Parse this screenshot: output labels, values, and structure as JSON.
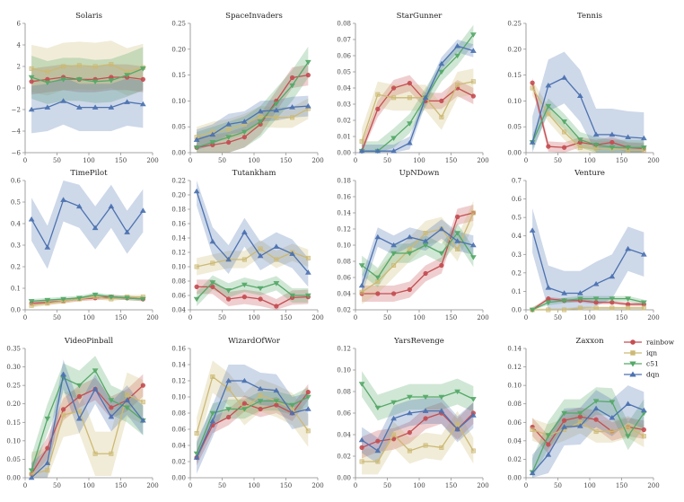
{
  "chart_data": {
    "type": "line",
    "description_colors": {
      "rainbow": "#c44e52",
      "iqn": "#ccb974",
      "c51": "#55a868",
      "dqn": "#4c72b0"
    },
    "legend": [
      "rainbow",
      "iqn",
      "c51",
      "dqn"
    ],
    "x": [
      10,
      35,
      60,
      85,
      110,
      135,
      160,
      185
    ],
    "x_ticks": [
      0,
      50,
      100,
      150,
      200
    ],
    "panels": [
      {
        "title": "Solaris",
        "ylim": [
          -6,
          6
        ],
        "yticks": [
          -6,
          -4,
          -2,
          0,
          2,
          4,
          6
        ],
        "series": [
          {
            "name": "rainbow",
            "values": [
              0.6,
              0.8,
              1.0,
              0.8,
              0.8,
              1.0,
              1.0,
              0.8
            ],
            "band": 1.2
          },
          {
            "name": "iqn",
            "values": [
              1.8,
              1.5,
              2.0,
              2.1,
              2.0,
              2.2,
              1.5,
              1.9
            ],
            "band": 2.2
          },
          {
            "name": "c51",
            "values": [
              1.0,
              0.5,
              0.8,
              0.8,
              0.6,
              0.7,
              1.2,
              1.8
            ],
            "band": 2.0
          },
          {
            "name": "dqn",
            "values": [
              -2.0,
              -1.8,
              -1.2,
              -1.8,
              -1.8,
              -1.8,
              -1.3,
              -1.5
            ],
            "band": 2.2
          }
        ]
      },
      {
        "title": "SpaceInvaders",
        "ylim": [
          0,
          0.25
        ],
        "yticks": [
          0.0,
          0.05,
          0.1,
          0.15,
          0.2,
          0.25
        ],
        "series": [
          {
            "name": "rainbow",
            "values": [
              0.01,
              0.015,
              0.02,
              0.03,
              0.055,
              0.1,
              0.145,
              0.15
            ],
            "band": 0.02
          },
          {
            "name": "iqn",
            "values": [
              0.03,
              0.04,
              0.045,
              0.055,
              0.07,
              0.068,
              0.068,
              0.085
            ],
            "band": 0.02
          },
          {
            "name": "c51",
            "values": [
              0.01,
              0.02,
              0.03,
              0.04,
              0.06,
              0.095,
              0.13,
              0.175
            ],
            "band": 0.03
          },
          {
            "name": "dqn",
            "values": [
              0.025,
              0.035,
              0.055,
              0.06,
              0.08,
              0.082,
              0.088,
              0.09
            ],
            "band": 0.02
          }
        ]
      },
      {
        "title": "StarGunner",
        "ylim": [
          0,
          0.08
        ],
        "yticks": [
          0.0,
          0.01,
          0.02,
          0.03,
          0.04,
          0.05,
          0.06,
          0.07,
          0.08
        ],
        "series": [
          {
            "name": "rainbow",
            "values": [
              0.001,
              0.027,
              0.04,
              0.043,
              0.032,
              0.032,
              0.04,
              0.035
            ],
            "band": 0.005
          },
          {
            "name": "iqn",
            "values": [
              0.007,
              0.036,
              0.034,
              0.034,
              0.034,
              0.022,
              0.042,
              0.044
            ],
            "band": 0.008
          },
          {
            "name": "c51",
            "values": [
              0.001,
              0.001,
              0.009,
              0.018,
              0.034,
              0.05,
              0.06,
              0.073
            ],
            "band": 0.006
          },
          {
            "name": "dqn",
            "values": [
              0.001,
              0.001,
              0.001,
              0.006,
              0.034,
              0.055,
              0.066,
              0.063
            ],
            "band": 0.004
          }
        ]
      },
      {
        "title": "Tennis",
        "ylim": [
          0,
          0.25
        ],
        "yticks": [
          0.0,
          0.05,
          0.1,
          0.15,
          0.2,
          0.25
        ],
        "series": [
          {
            "name": "rainbow",
            "values": [
              0.135,
              0.012,
              0.01,
              0.02,
              0.015,
              0.02,
              0.01,
              0.008
            ],
            "band": 0.01
          },
          {
            "name": "iqn",
            "values": [
              0.125,
              0.075,
              0.04,
              0.01,
              0.008,
              0.008,
              0.005,
              0.005
            ],
            "band": 0.015
          },
          {
            "name": "c51",
            "values": [
              0.02,
              0.09,
              0.06,
              0.025,
              0.015,
              0.01,
              0.01,
              0.01
            ],
            "band": 0.015
          },
          {
            "name": "dqn",
            "values": [
              0.02,
              0.13,
              0.145,
              0.11,
              0.035,
              0.035,
              0.03,
              0.028
            ],
            "band": 0.05
          }
        ]
      },
      {
        "title": "TimePilot",
        "ylim": [
          0,
          0.6
        ],
        "yticks": [
          0.0,
          0.1,
          0.2,
          0.3,
          0.4,
          0.5,
          0.6
        ],
        "series": [
          {
            "name": "rainbow",
            "values": [
              0.03,
              0.035,
              0.04,
              0.05,
              0.055,
              0.06,
              0.055,
              0.05
            ],
            "band": 0.01
          },
          {
            "name": "iqn",
            "values": [
              0.02,
              0.03,
              0.04,
              0.05,
              0.06,
              0.05,
              0.06,
              0.06
            ],
            "band": 0.01
          },
          {
            "name": "c51",
            "values": [
              0.04,
              0.045,
              0.05,
              0.055,
              0.07,
              0.06,
              0.055,
              0.05
            ],
            "band": 0.01
          },
          {
            "name": "dqn",
            "values": [
              0.42,
              0.29,
              0.51,
              0.48,
              0.38,
              0.48,
              0.36,
              0.46
            ],
            "band": 0.1
          }
        ]
      },
      {
        "title": "Tutankham",
        "ylim": [
          0.04,
          0.22
        ],
        "yticks": [
          0.04,
          0.06,
          0.08,
          0.1,
          0.12,
          0.14,
          0.16,
          0.18,
          0.2,
          0.22
        ],
        "series": [
          {
            "name": "rainbow",
            "values": [
              0.072,
              0.072,
              0.055,
              0.058,
              0.055,
              0.045,
              0.057,
              0.058
            ],
            "band": 0.01
          },
          {
            "name": "iqn",
            "values": [
              0.1,
              0.105,
              0.11,
              0.11,
              0.125,
              0.11,
              0.12,
              0.112
            ],
            "band": 0.012
          },
          {
            "name": "c51",
            "values": [
              0.055,
              0.078,
              0.067,
              0.075,
              0.07,
              0.077,
              0.06,
              0.06
            ],
            "band": 0.01
          },
          {
            "name": "dqn",
            "values": [
              0.205,
              0.135,
              0.11,
              0.148,
              0.115,
              0.128,
              0.118,
              0.092
            ],
            "band": 0.02
          }
        ]
      },
      {
        "title": "UpNDown",
        "ylim": [
          0.02,
          0.18
        ],
        "yticks": [
          0.02,
          0.04,
          0.06,
          0.08,
          0.1,
          0.12,
          0.14,
          0.16,
          0.18
        ],
        "series": [
          {
            "name": "rainbow",
            "values": [
              0.04,
              0.04,
              0.04,
              0.045,
              0.065,
              0.075,
              0.135,
              0.14
            ],
            "band": 0.01
          },
          {
            "name": "iqn",
            "values": [
              0.042,
              0.055,
              0.075,
              0.095,
              0.115,
              0.12,
              0.095,
              0.14
            ],
            "band": 0.015
          },
          {
            "name": "c51",
            "values": [
              0.075,
              0.06,
              0.09,
              0.09,
              0.1,
              0.09,
              0.115,
              0.085
            ],
            "band": 0.012
          },
          {
            "name": "dqn",
            "values": [
              0.05,
              0.11,
              0.1,
              0.11,
              0.105,
              0.12,
              0.105,
              0.1
            ],
            "band": 0.012
          }
        ]
      },
      {
        "title": "Venture",
        "ylim": [
          0,
          0.7
        ],
        "yticks": [
          0.0,
          0.1,
          0.2,
          0.3,
          0.4,
          0.5,
          0.6,
          0.7
        ],
        "series": [
          {
            "name": "rainbow",
            "values": [
              0.0,
              0.06,
              0.05,
              0.05,
              0.04,
              0.04,
              0.03,
              0.03
            ],
            "band": 0.01
          },
          {
            "name": "iqn",
            "values": [
              0.0,
              0.0,
              0.0,
              0.01,
              0.01,
              0.01,
              0.01,
              0.01
            ],
            "band": 0.008
          },
          {
            "name": "c51",
            "values": [
              0.0,
              0.04,
              0.05,
              0.06,
              0.06,
              0.06,
              0.06,
              0.04
            ],
            "band": 0.015
          },
          {
            "name": "dqn",
            "values": [
              0.43,
              0.12,
              0.09,
              0.09,
              0.14,
              0.18,
              0.33,
              0.3
            ],
            "band": 0.12
          }
        ]
      },
      {
        "title": "VideoPinball",
        "ylim": [
          0,
          0.35
        ],
        "yticks": [
          0.0,
          0.05,
          0.1,
          0.15,
          0.2,
          0.25,
          0.3,
          0.35
        ],
        "series": [
          {
            "name": "rainbow",
            "values": [
              0.01,
              0.08,
              0.185,
              0.22,
              0.24,
              0.19,
              0.21,
              0.25
            ],
            "band": 0.03
          },
          {
            "name": "iqn",
            "values": [
              0.01,
              0.02,
              0.17,
              0.18,
              0.065,
              0.065,
              0.225,
              0.205
            ],
            "band": 0.06
          },
          {
            "name": "c51",
            "values": [
              0.02,
              0.16,
              0.27,
              0.25,
              0.29,
              0.21,
              0.19,
              0.155
            ],
            "band": 0.04
          },
          {
            "name": "dqn",
            "values": [
              0.0,
              0.04,
              0.28,
              0.16,
              0.24,
              0.165,
              0.21,
              0.155
            ],
            "band": 0.04
          }
        ]
      },
      {
        "title": "WizardOfWor",
        "ylim": [
          0,
          0.16
        ],
        "yticks": [
          0.0,
          0.02,
          0.04,
          0.06,
          0.08,
          0.1,
          0.12,
          0.14,
          0.16
        ],
        "series": [
          {
            "name": "rainbow",
            "values": [
              0.025,
              0.065,
              0.075,
              0.092,
              0.085,
              0.09,
              0.08,
              0.106
            ],
            "band": 0.01
          },
          {
            "name": "iqn",
            "values": [
              0.055,
              0.125,
              0.11,
              0.085,
              0.102,
              0.095,
              0.085,
              0.058
            ],
            "band": 0.02
          },
          {
            "name": "c51",
            "values": [
              0.03,
              0.08,
              0.085,
              0.085,
              0.095,
              0.095,
              0.09,
              0.1
            ],
            "band": 0.012
          },
          {
            "name": "dqn",
            "values": [
              0.025,
              0.07,
              0.12,
              0.12,
              0.11,
              0.108,
              0.08,
              0.085
            ],
            "band": 0.02
          }
        ]
      },
      {
        "title": "YarsRevenge",
        "ylim": [
          0,
          0.12
        ],
        "yticks": [
          0.0,
          0.02,
          0.04,
          0.06,
          0.08,
          0.1,
          0.12
        ],
        "series": [
          {
            "name": "rainbow",
            "values": [
              0.028,
              0.034,
              0.036,
              0.042,
              0.055,
              0.06,
              0.045,
              0.06
            ],
            "band": 0.01
          },
          {
            "name": "iqn",
            "values": [
              0.015,
              0.015,
              0.04,
              0.025,
              0.03,
              0.028,
              0.05,
              0.025
            ],
            "band": 0.012
          },
          {
            "name": "c51",
            "values": [
              0.087,
              0.065,
              0.07,
              0.075,
              0.075,
              0.075,
              0.08,
              0.073
            ],
            "band": 0.012
          },
          {
            "name": "dqn",
            "values": [
              0.035,
              0.025,
              0.055,
              0.06,
              0.062,
              0.062,
              0.045,
              0.058
            ],
            "band": 0.012
          }
        ]
      },
      {
        "title": "Zaxxon",
        "ylim": [
          0,
          0.14
        ],
        "yticks": [
          0.0,
          0.02,
          0.04,
          0.06,
          0.08,
          0.1,
          0.12,
          0.14
        ],
        "series": [
          {
            "name": "rainbow",
            "values": [
              0.055,
              0.036,
              0.062,
              0.066,
              0.063,
              0.05,
              0.055,
              0.052
            ],
            "band": 0.01
          },
          {
            "name": "iqn",
            "values": [
              0.052,
              0.046,
              0.052,
              0.06,
              0.05,
              0.05,
              0.055,
              0.045
            ],
            "band": 0.012
          },
          {
            "name": "c51",
            "values": [
              0.006,
              0.046,
              0.07,
              0.07,
              0.083,
              0.082,
              0.045,
              0.07
            ],
            "band": 0.015
          },
          {
            "name": "dqn",
            "values": [
              0.005,
              0.025,
              0.055,
              0.056,
              0.075,
              0.065,
              0.08,
              0.073
            ],
            "band": 0.02
          }
        ]
      }
    ]
  }
}
